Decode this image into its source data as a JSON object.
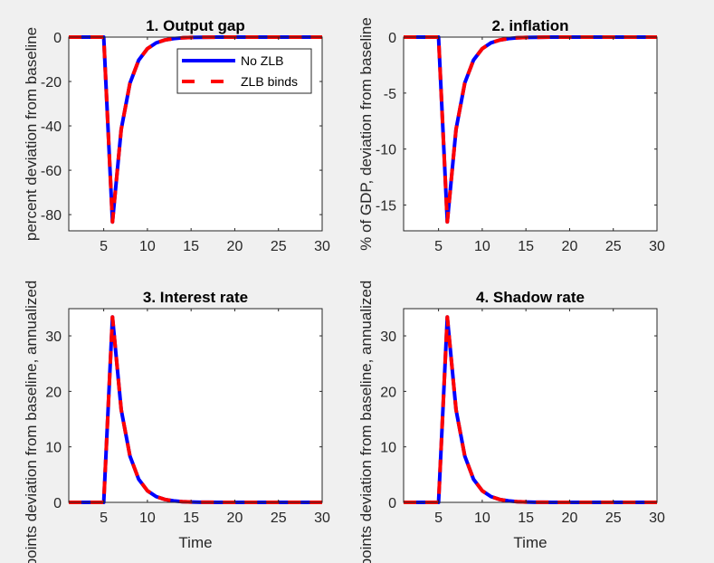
{
  "chart_data": [
    {
      "type": "line",
      "title": "1. Output gap",
      "xlabel": "",
      "ylabel": "percent deviation from baseline",
      "xlim": [
        1,
        30
      ],
      "ylim": [
        -87.3,
        0
      ],
      "xticks": [
        5,
        10,
        15,
        20,
        25,
        30
      ],
      "yticks": [
        0,
        -20,
        -40,
        -60,
        -80
      ],
      "ytick_labels": [
        "0",
        "-20",
        "-40",
        "-60",
        "-80"
      ],
      "legend": {
        "position": "top-right",
        "entries": [
          "No ZLB",
          "ZLB binds"
        ]
      },
      "x": [
        1,
        2,
        3,
        4,
        5,
        6,
        7,
        8,
        9,
        10,
        11,
        12,
        13,
        14,
        15,
        16,
        17,
        18,
        19,
        20,
        21,
        22,
        23,
        24,
        25,
        26,
        27,
        28,
        29,
        30
      ],
      "series": [
        {
          "name": "No ZLB",
          "values": [
            0,
            0,
            0,
            0,
            0,
            -83.3,
            -41.6,
            -20.8,
            -10.4,
            -5.2,
            -2.6,
            -1.3,
            -0.65,
            -0.33,
            -0.16,
            -0.08,
            -0.04,
            -0.02,
            -0.01,
            0,
            0,
            0,
            0,
            0,
            0,
            0,
            0,
            0,
            0,
            0
          ]
        },
        {
          "name": "ZLB binds",
          "values": [
            0,
            0,
            0,
            0,
            0,
            -83.3,
            -41.6,
            -20.8,
            -10.4,
            -5.2,
            -2.6,
            -1.3,
            -0.65,
            -0.33,
            -0.16,
            -0.08,
            -0.04,
            -0.02,
            -0.01,
            0,
            0,
            0,
            0,
            0,
            0,
            0,
            0,
            0,
            0,
            0
          ]
        }
      ]
    },
    {
      "type": "line",
      "title": "2. inflation",
      "xlabel": "",
      "ylabel": "% of GDP, deviation from baseline",
      "xlim": [
        1,
        30
      ],
      "ylim": [
        -17.3,
        0
      ],
      "xticks": [
        5,
        10,
        15,
        20,
        25,
        30
      ],
      "yticks": [
        0,
        -5,
        -10,
        -15
      ],
      "ytick_labels": [
        "0",
        "-5",
        "-10",
        "-15"
      ],
      "x": [
        1,
        2,
        3,
        4,
        5,
        6,
        7,
        8,
        9,
        10,
        11,
        12,
        13,
        14,
        15,
        16,
        17,
        18,
        19,
        20,
        21,
        22,
        23,
        24,
        25,
        26,
        27,
        28,
        29,
        30
      ],
      "series": [
        {
          "name": "No ZLB",
          "values": [
            0,
            0,
            0,
            0,
            0,
            -16.5,
            -8.25,
            -4.1,
            -2.05,
            -1.03,
            -0.51,
            -0.26,
            -0.13,
            -0.06,
            -0.03,
            -0.02,
            -0.01,
            0,
            0,
            0,
            0,
            0,
            0,
            0,
            0,
            0,
            0,
            0,
            0,
            0
          ]
        },
        {
          "name": "ZLB binds",
          "values": [
            0,
            0,
            0,
            0,
            0,
            -16.5,
            -8.25,
            -4.1,
            -2.05,
            -1.03,
            -0.51,
            -0.26,
            -0.13,
            -0.06,
            -0.03,
            -0.02,
            -0.01,
            0,
            0,
            0,
            0,
            0,
            0,
            0,
            0,
            0,
            0,
            0,
            0,
            0
          ]
        }
      ]
    },
    {
      "type": "line",
      "title": "3. Interest rate",
      "xlabel": "Time",
      "ylabel": "points deviation from baseline, annualized",
      "xlim": [
        1,
        30
      ],
      "ylim": [
        0,
        34.9
      ],
      "xticks": [
        5,
        10,
        15,
        20,
        25,
        30
      ],
      "yticks": [
        0,
        10,
        20,
        30
      ],
      "ytick_labels": [
        "0",
        "10",
        "20",
        "30"
      ],
      "x": [
        1,
        2,
        3,
        4,
        5,
        6,
        7,
        8,
        9,
        10,
        11,
        12,
        13,
        14,
        15,
        16,
        17,
        18,
        19,
        20,
        21,
        22,
        23,
        24,
        25,
        26,
        27,
        28,
        29,
        30
      ],
      "series": [
        {
          "name": "No ZLB",
          "values": [
            0,
            0,
            0,
            0,
            0,
            33.4,
            16.7,
            8.35,
            4.17,
            2.09,
            1.04,
            0.52,
            0.26,
            0.13,
            0.07,
            0.03,
            0.02,
            0.01,
            0,
            0,
            0,
            0,
            0,
            0,
            0,
            0,
            0,
            0,
            0,
            0
          ]
        },
        {
          "name": "ZLB binds",
          "values": [
            0,
            0,
            0,
            0,
            0,
            33.4,
            16.7,
            8.35,
            4.17,
            2.09,
            1.04,
            0.52,
            0.26,
            0.13,
            0.07,
            0.03,
            0.02,
            0.01,
            0,
            0,
            0,
            0,
            0,
            0,
            0,
            0,
            0,
            0,
            0,
            0
          ]
        }
      ]
    },
    {
      "type": "line",
      "title": "4. Shadow rate",
      "xlabel": "Time",
      "ylabel": "points deviation from baseline, annualized",
      "xlim": [
        1,
        30
      ],
      "ylim": [
        0,
        34.9
      ],
      "xticks": [
        5,
        10,
        15,
        20,
        25,
        30
      ],
      "yticks": [
        0,
        10,
        20,
        30
      ],
      "ytick_labels": [
        "0",
        "10",
        "20",
        "30"
      ],
      "x": [
        1,
        2,
        3,
        4,
        5,
        6,
        7,
        8,
        9,
        10,
        11,
        12,
        13,
        14,
        15,
        16,
        17,
        18,
        19,
        20,
        21,
        22,
        23,
        24,
        25,
        26,
        27,
        28,
        29,
        30
      ],
      "series": [
        {
          "name": "No ZLB",
          "values": [
            0,
            0,
            0,
            0,
            0,
            33.4,
            16.7,
            8.35,
            4.17,
            2.09,
            1.04,
            0.52,
            0.26,
            0.13,
            0.07,
            0.03,
            0.02,
            0.01,
            0,
            0,
            0,
            0,
            0,
            0,
            0,
            0,
            0,
            0,
            0,
            0
          ]
        },
        {
          "name": "ZLB binds",
          "values": [
            0,
            0,
            0,
            0,
            0,
            33.4,
            16.7,
            8.35,
            4.17,
            2.09,
            1.04,
            0.52,
            0.26,
            0.13,
            0.07,
            0.03,
            0.02,
            0.01,
            0,
            0,
            0,
            0,
            0,
            0,
            0,
            0,
            0,
            0,
            0,
            0
          ]
        }
      ]
    }
  ],
  "colors": {
    "no_zlb": "#0000ff",
    "zlb_binds": "#ff0000",
    "axes_bg": "#ffffff",
    "figure_bg": "#f0f0f0"
  }
}
